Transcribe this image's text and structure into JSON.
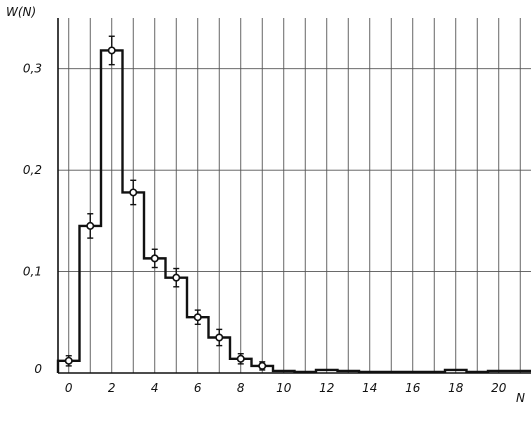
{
  "chart_data": {
    "type": "bar",
    "subtype": "step-histogram-with-error-bars",
    "title": "",
    "xlabel": "N",
    "ylabel": "W(N)",
    "xlim": [
      -0.5,
      21.5
    ],
    "ylim": [
      0,
      0.35
    ],
    "grid": true,
    "x_ticks": [
      "0",
      "2",
      "4",
      "6",
      "8",
      "10",
      "12",
      "14",
      "16",
      "18",
      "20"
    ],
    "y_ticks": [
      "0",
      "0,1",
      "0,2",
      "0,3"
    ],
    "x": [
      0,
      1,
      2,
      3,
      4,
      5,
      6,
      7,
      8,
      9,
      10,
      11,
      12,
      13,
      14,
      15,
      16,
      17,
      18,
      19,
      20,
      21
    ],
    "values": [
      0.012,
      0.145,
      0.318,
      0.178,
      0.113,
      0.094,
      0.055,
      0.035,
      0.014,
      0.007,
      0.002,
      0.001,
      0.003,
      0.002,
      0.001,
      0.001,
      0.001,
      0.001,
      0.003,
      0.001,
      0.002,
      0.002
    ],
    "points": [
      {
        "x": 0,
        "y": 0.012,
        "err": 0.005
      },
      {
        "x": 1,
        "y": 0.145,
        "err": 0.012
      },
      {
        "x": 2,
        "y": 0.318,
        "err": 0.014
      },
      {
        "x": 3,
        "y": 0.178,
        "err": 0.012
      },
      {
        "x": 4,
        "y": 0.113,
        "err": 0.009
      },
      {
        "x": 5,
        "y": 0.094,
        "err": 0.009
      },
      {
        "x": 6,
        "y": 0.055,
        "err": 0.007
      },
      {
        "x": 7,
        "y": 0.035,
        "err": 0.008
      },
      {
        "x": 8,
        "y": 0.014,
        "err": 0.005
      },
      {
        "x": 9,
        "y": 0.007,
        "err": 0.004
      }
    ]
  }
}
